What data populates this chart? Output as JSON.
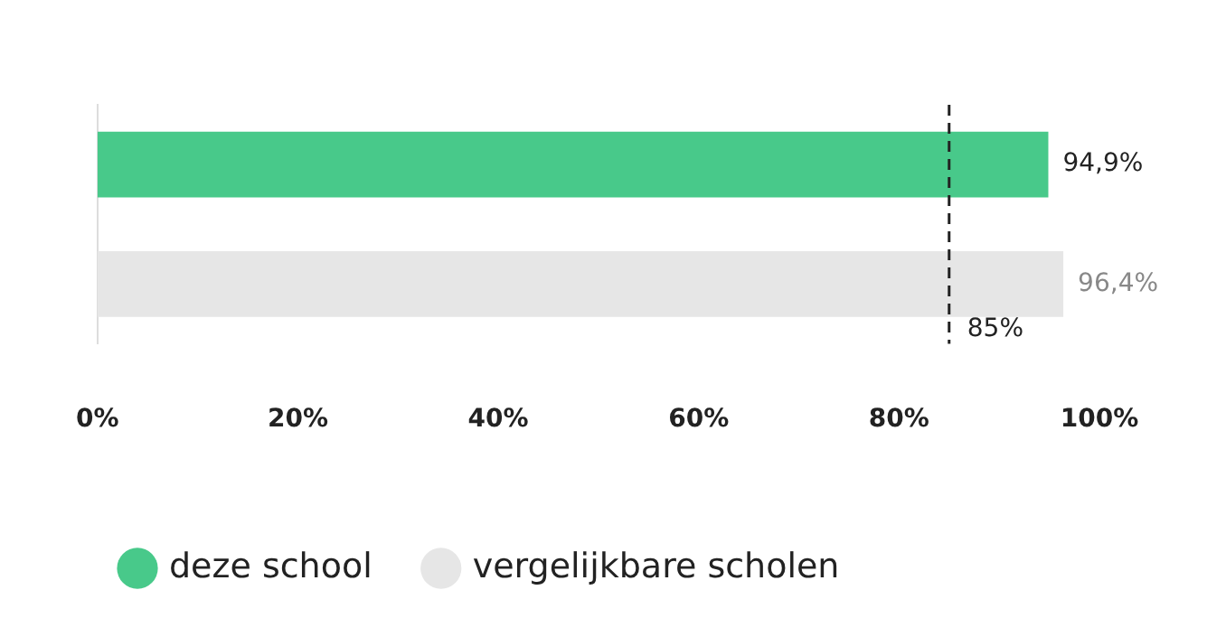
{
  "chart_data": {
    "type": "bar",
    "orientation": "horizontal",
    "categories": [
      null
    ],
    "series": [
      {
        "name": "deze school",
        "color": "#48c98a",
        "values": [
          94.9
        ],
        "value_labels": [
          "94,9%"
        ]
      },
      {
        "name": "vergelijkbare scholen",
        "color": "#e6e6e6",
        "values": [
          96.4
        ],
        "value_labels": [
          "96,4%"
        ]
      }
    ],
    "xlim": [
      0,
      100
    ],
    "xticks": [
      {
        "value": 0,
        "label": "0%"
      },
      {
        "value": 20,
        "label": "20%"
      },
      {
        "value": 40,
        "label": "40%"
      },
      {
        "value": 60,
        "label": "60%"
      },
      {
        "value": 80,
        "label": "80%"
      },
      {
        "value": 100,
        "label": "100%"
      }
    ],
    "ref_lines": [
      {
        "axis": "x",
        "value": 85,
        "label": "85%",
        "color": "#222222",
        "line_style": "dashed"
      }
    ],
    "grid": false,
    "legend": "bottom"
  }
}
